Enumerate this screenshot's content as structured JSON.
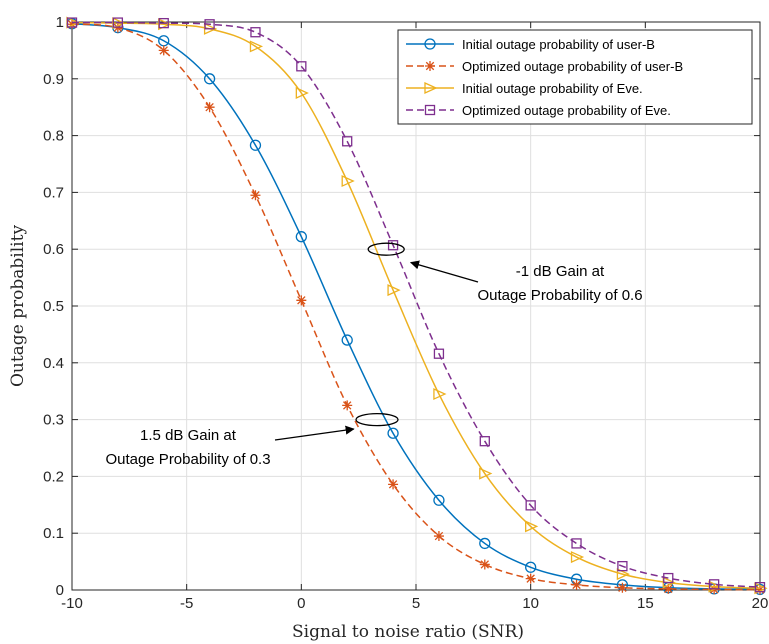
{
  "chart_data": {
    "type": "line",
    "xlabel": "Signal to noise ratio (SNR)",
    "ylabel": "Outage probability",
    "xlim": [
      -10,
      20
    ],
    "ylim": [
      0,
      1
    ],
    "xticks": [
      "-10",
      "-5",
      "0",
      "5",
      "10",
      "15",
      "20"
    ],
    "yticks": [
      "0",
      "0.1",
      "0.2",
      "0.3",
      "0.4",
      "0.5",
      "0.6",
      "0.7",
      "0.8",
      "0.9",
      "1"
    ],
    "grid": true,
    "legend_position": "top-right",
    "x": [
      -10,
      -8,
      -6,
      -4,
      -2,
      0,
      2,
      4,
      6,
      8,
      10,
      12,
      14,
      16,
      18,
      20
    ],
    "series": [
      {
        "name": "Initial outage probability of user-B",
        "color": "#0072BD",
        "marker": "circle",
        "dash": "solid",
        "values": [
          0.997,
          0.99,
          0.967,
          0.9,
          0.783,
          0.622,
          0.44,
          0.276,
          0.158,
          0.082,
          0.04,
          0.019,
          0.009,
          0.004,
          0.002,
          0.001
        ]
      },
      {
        "name": "Optimized outage probability of user-B",
        "color": "#D95319",
        "marker": "asterisk",
        "dash": "dashed",
        "values": [
          0.996,
          0.99,
          0.95,
          0.85,
          0.695,
          0.51,
          0.325,
          0.186,
          0.095,
          0.045,
          0.02,
          0.009,
          0.004,
          0.002,
          0.001,
          0.0005
        ]
      },
      {
        "name": "Initial outage probability of Eve.",
        "color": "#EDB120",
        "marker": "triangle-right",
        "dash": "solid",
        "values": [
          0.999,
          0.998,
          0.996,
          0.988,
          0.957,
          0.875,
          0.72,
          0.528,
          0.345,
          0.205,
          0.112,
          0.058,
          0.028,
          0.013,
          0.006,
          0.003
        ]
      },
      {
        "name": "Optimized outage probability of Eve.",
        "color": "#7E2F8E",
        "marker": "square",
        "dash": "dashed",
        "values": [
          0.999,
          0.999,
          0.998,
          0.996,
          0.982,
          0.922,
          0.79,
          0.607,
          0.416,
          0.262,
          0.149,
          0.082,
          0.042,
          0.021,
          0.01,
          0.005
        ]
      }
    ],
    "annotations": [
      {
        "line1": "-1 dB Gain at",
        "line2": "Outage Probability of 0.6",
        "ellipse_x": 3.7,
        "ellipse_y": 0.6,
        "target_x": 4.6,
        "target_y": 0.58
      },
      {
        "line1": "1.5 dB Gain at",
        "line2": "Outage Probability of 0.3",
        "ellipse_x": 3.3,
        "ellipse_y": 0.3,
        "target_x": 2.2,
        "target_y": 0.28
      }
    ]
  }
}
